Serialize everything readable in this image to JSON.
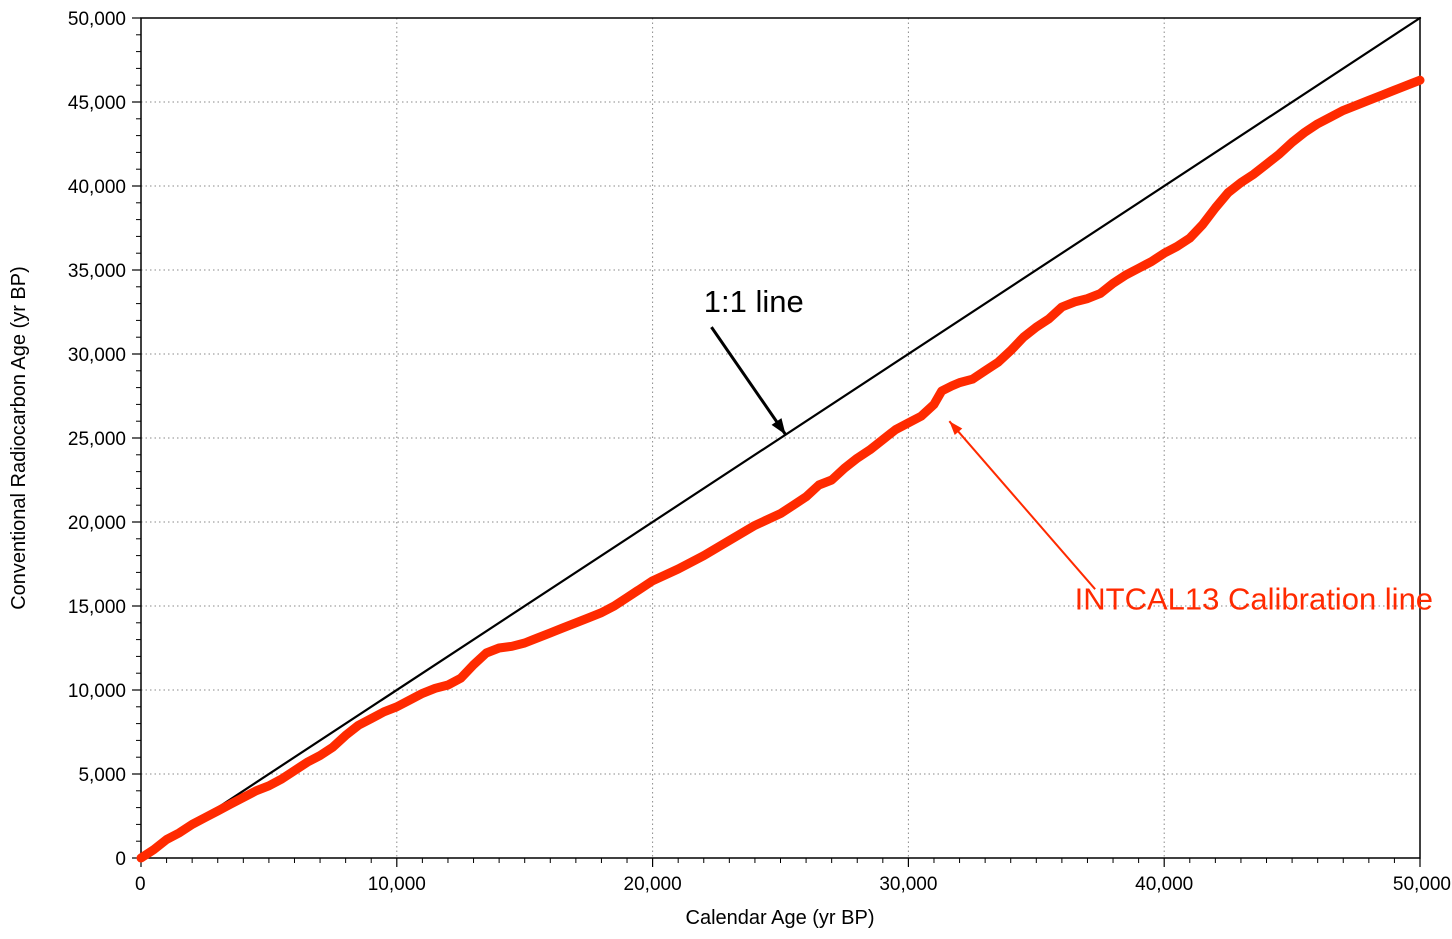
{
  "chart_data": {
    "type": "line",
    "xlabel": "Calendar Age (yr BP)",
    "ylabel": "Conventional Radiocarbon Age (yr BP)",
    "xlim": [
      0,
      50000
    ],
    "ylim": [
      0,
      50000
    ],
    "x_ticks": [
      "0",
      "10,000",
      "20,000",
      "30,000",
      "40,000",
      "50,000"
    ],
    "y_ticks": [
      "0",
      "5,000",
      "10,000",
      "15,000",
      "20,000",
      "25,000",
      "30,000",
      "35,000",
      "40,000",
      "45,000",
      "50,000"
    ],
    "grid": "dotted",
    "series": [
      {
        "name": "1:1 line",
        "color": "#000000",
        "x": [
          0,
          50000
        ],
        "y": [
          0,
          50000
        ]
      },
      {
        "name": "INTCAL13 Calibration line",
        "color": "#ff2a00",
        "x": [
          0,
          500,
          1000,
          1500,
          2000,
          2500,
          3000,
          3500,
          4000,
          4500,
          5000,
          5500,
          6000,
          6500,
          7000,
          7500,
          8000,
          8500,
          9000,
          9500,
          10000,
          10500,
          11000,
          11500,
          12000,
          12500,
          13000,
          13500,
          14000,
          14500,
          15000,
          15500,
          16000,
          16500,
          17000,
          17500,
          18000,
          18500,
          19000,
          19500,
          20000,
          21000,
          22000,
          23000,
          24000,
          25000,
          25500,
          26000,
          26500,
          27000,
          27500,
          28000,
          28500,
          29000,
          29500,
          30000,
          30500,
          31000,
          31300,
          31700,
          32000,
          32500,
          33000,
          33500,
          34000,
          34500,
          35000,
          35500,
          36000,
          36500,
          37000,
          37500,
          38000,
          38500,
          39000,
          39500,
          40000,
          40500,
          41000,
          41500,
          42000,
          42500,
          43000,
          43500,
          44000,
          44500,
          45000,
          45500,
          46000,
          46500,
          47000,
          47500,
          48000,
          48500,
          49000,
          49500,
          50000
        ],
        "y": [
          0,
          500,
          1100,
          1500,
          2000,
          2400,
          2800,
          3200,
          3600,
          4000,
          4300,
          4700,
          5200,
          5700,
          6100,
          6600,
          7300,
          7900,
          8300,
          8700,
          9000,
          9400,
          9800,
          10100,
          10300,
          10700,
          11500,
          12200,
          12500,
          12600,
          12800,
          13100,
          13400,
          13700,
          14000,
          14300,
          14600,
          15000,
          15500,
          16000,
          16500,
          17200,
          18000,
          18900,
          19800,
          20500,
          21000,
          21500,
          22200,
          22500,
          23200,
          23800,
          24300,
          24900,
          25500,
          25900,
          26300,
          27000,
          27800,
          28100,
          28300,
          28500,
          29000,
          29500,
          30200,
          31000,
          31600,
          32100,
          32800,
          33100,
          33300,
          33600,
          34200,
          34700,
          35100,
          35500,
          36000,
          36400,
          36900,
          37700,
          38700,
          39600,
          40200,
          40700,
          41300,
          41900,
          42600,
          43200,
          43700,
          44100,
          44500,
          44800,
          45100,
          45400,
          45700,
          46000,
          46300
        ]
      }
    ],
    "annotations": [
      {
        "text": "1:1 line",
        "color": "#000000",
        "text_at": [
          22000,
          32500
        ],
        "arrow_from": [
          22300,
          31600
        ],
        "arrow_to": [
          25200,
          25200
        ]
      },
      {
        "text": "INTCAL13 Calibration line",
        "color": "#ff2a00",
        "text_at": [
          36500,
          14800
        ],
        "arrow_from": [
          37300,
          16000
        ],
        "arrow_to": [
          31600,
          26000
        ]
      }
    ]
  }
}
